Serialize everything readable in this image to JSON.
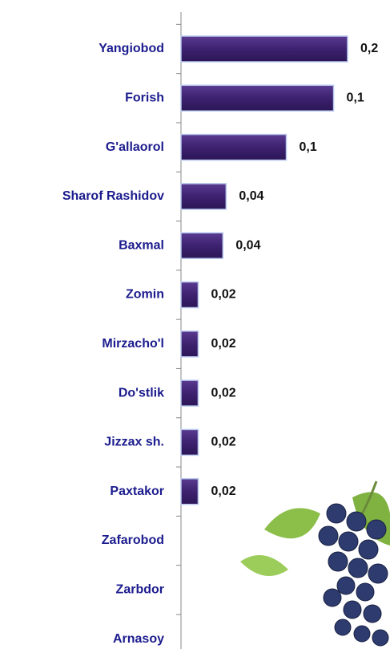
{
  "chart_data": {
    "type": "bar",
    "orientation": "horizontal",
    "categories": [
      "Yangiobod",
      "Forish",
      "G'allaorol",
      "Sharof Rashidov",
      "Baxmal",
      "Zomin",
      "Mirzacho'l",
      "Do'stlik",
      "Jizzax sh.",
      "Paxtakor",
      "Zafarobod",
      "Zarbdor",
      "Arnasoy"
    ],
    "values": [
      0.155,
      0.142,
      0.098,
      0.042,
      0.039,
      0.016,
      0.016,
      0.016,
      0.016,
      0.016,
      null,
      null,
      null
    ],
    "value_labels": [
      "0,2",
      "0,1",
      "0,1",
      "0,04",
      "0,04",
      "0,02",
      "0,02",
      "0,02",
      "0,02",
      "0,02",
      null,
      null,
      null
    ],
    "color": "#3d2270"
  }
}
